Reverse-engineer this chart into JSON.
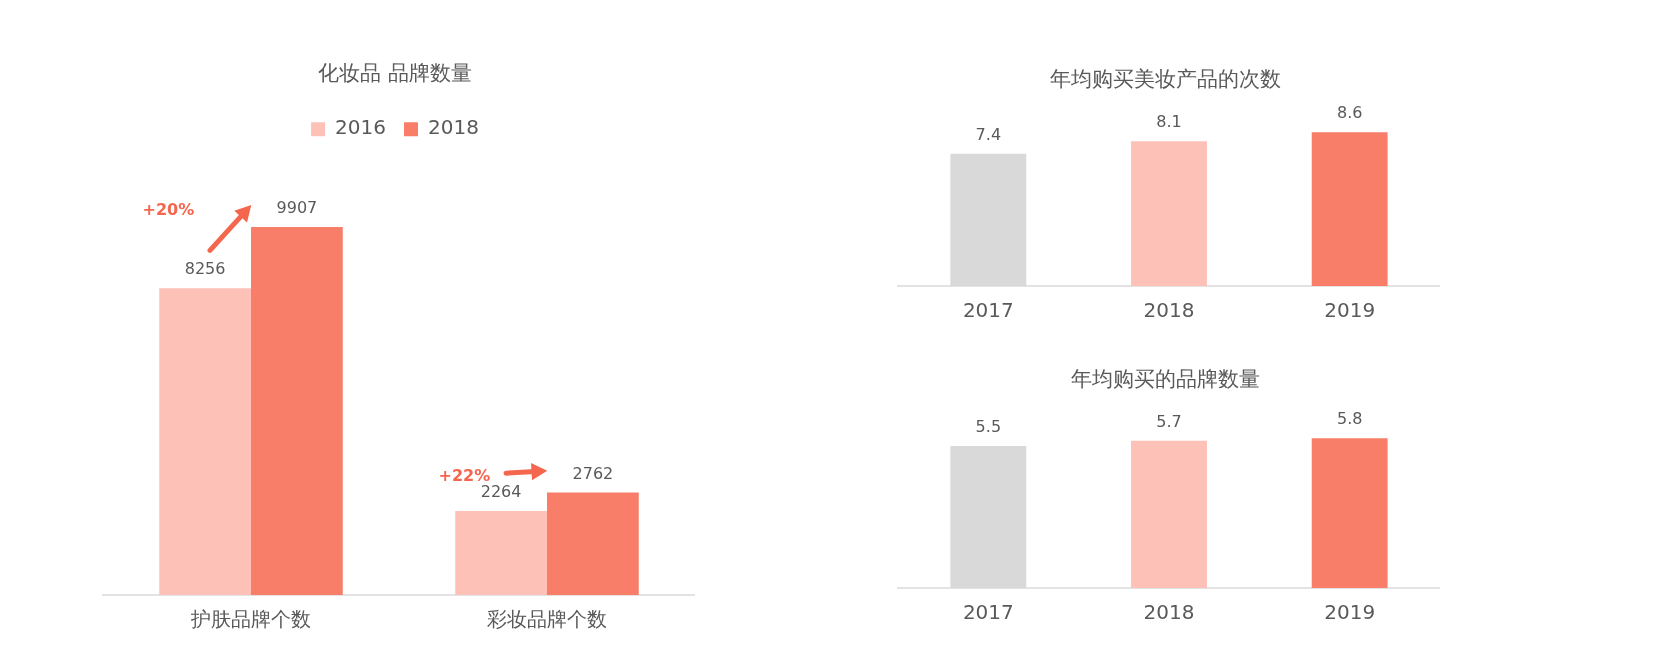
{
  "chart_data": [
    {
      "type": "bar",
      "title": "化妆品 品牌数量",
      "categories": [
        "护肤品牌个数",
        "彩妆品牌个数"
      ],
      "series": [
        {
          "name": "2016",
          "color": "#fdc1b8",
          "values": [
            8256,
            2264
          ]
        },
        {
          "name": "2018",
          "color": "#f97e6a",
          "values": [
            9907,
            2762
          ]
        }
      ],
      "data_labels": true,
      "legend": "top",
      "grid": false,
      "tick_labels": "x",
      "annotations": [
        "+20%",
        "+22%"
      ]
    },
    {
      "type": "bar",
      "title": "年均购买美妆产品的次数",
      "categories": [
        "2017",
        "2018",
        "2019"
      ],
      "values": [
        7.4,
        8.1,
        8.6
      ],
      "colors": [
        "#d9d9d9",
        "#fdc1b8",
        "#f97e6a"
      ],
      "data_labels": true,
      "grid": false,
      "tick_labels": "x"
    },
    {
      "type": "bar",
      "title": "年均购买的品牌数量",
      "categories": [
        "2017",
        "2018",
        "2019"
      ],
      "values": [
        5.5,
        5.7,
        5.8
      ],
      "colors": [
        "#d9d9d9",
        "#fdc1b8",
        "#f97e6a"
      ],
      "data_labels": true,
      "grid": false,
      "tick_labels": "x"
    }
  ]
}
